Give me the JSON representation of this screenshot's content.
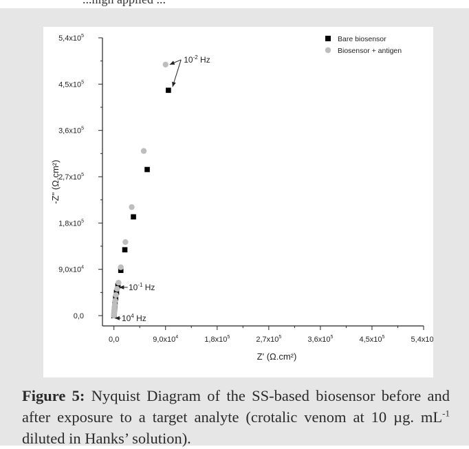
{
  "header_text": "...high applied ...",
  "caption": {
    "label": "Figure 5:",
    "text_before_sup": " Nyquist Diagram of the SS-based biosensor before and after exposure to a target analyte (crotalic venom at 10 µg. mL",
    "sup": "-1",
    "text_after_sup": " diluted in Hanks’ solution)."
  },
  "chart_data": {
    "type": "scatter",
    "title": "",
    "xlabel": "Z' (Ω.cm²)",
    "ylabel": "-Z\" (Ω.cm²)",
    "xlim": [
      -20000,
      540000
    ],
    "ylim": [
      -20000,
      540000
    ],
    "xticks": [
      0,
      90000,
      180000,
      270000,
      360000,
      450000,
      540000
    ],
    "yticks": [
      0,
      90000,
      180000,
      270000,
      360000,
      450000,
      540000
    ],
    "xtick_labels": [
      {
        "mant": "0,0",
        "exp": ""
      },
      {
        "mant": "9,0x10",
        "exp": "4"
      },
      {
        "mant": "1,8x10",
        "exp": "5"
      },
      {
        "mant": "2,7x10",
        "exp": "5"
      },
      {
        "mant": "3,6x10",
        "exp": "5"
      },
      {
        "mant": "4,5x10",
        "exp": "5"
      },
      {
        "mant": "5,4x10",
        "exp": "5"
      }
    ],
    "ytick_labels": [
      {
        "mant": "0,0",
        "exp": ""
      },
      {
        "mant": "9,0x10",
        "exp": "4"
      },
      {
        "mant": "1,8x10",
        "exp": "5"
      },
      {
        "mant": "2,7x10",
        "exp": "5"
      },
      {
        "mant": "3,6x10",
        "exp": "5"
      },
      {
        "mant": "4,5x10",
        "exp": "5"
      },
      {
        "mant": "5,4x10",
        "exp": "5"
      }
    ],
    "grid": false,
    "legend_position": "top-right",
    "series": [
      {
        "name": "Bare biosensor",
        "marker": "square",
        "color": "#000000",
        "points": [
          [
            0,
            0
          ],
          [
            200,
            2000
          ],
          [
            300,
            4000
          ],
          [
            400,
            6500
          ],
          [
            700,
            9000
          ],
          [
            1000,
            13000
          ],
          [
            1500,
            18000
          ],
          [
            2000,
            25000
          ],
          [
            3000,
            34000
          ],
          [
            4500,
            45000
          ],
          [
            7000,
            58000
          ],
          [
            12000,
            88000
          ],
          [
            19000,
            128000
          ],
          [
            34000,
            192000
          ],
          [
            58000,
            284000
          ],
          [
            95000,
            438000
          ]
        ]
      },
      {
        "name": "Biosensor + antigen",
        "marker": "circle",
        "color": "#bdbdbd",
        "points": [
          [
            0,
            0
          ],
          [
            100,
            2000
          ],
          [
            200,
            4500
          ],
          [
            300,
            7000
          ],
          [
            600,
            10000
          ],
          [
            1000,
            15000
          ],
          [
            1500,
            21000
          ],
          [
            2200,
            29000
          ],
          [
            3500,
            40000
          ],
          [
            5500,
            52000
          ],
          [
            8000,
            64000
          ],
          [
            12000,
            94000
          ],
          [
            20000,
            143000
          ],
          [
            31000,
            211000
          ],
          [
            52000,
            320000
          ],
          [
            90000,
            488000
          ]
        ]
      }
    ],
    "annotations": [
      {
        "text": "10",
        "sup": "-2",
        "unit": " Hz",
        "target_series": [
          0,
          1
        ],
        "target_index": 15
      },
      {
        "text": "10",
        "sup": "-1",
        "unit": " Hz",
        "target_series": [
          0
        ],
        "target_index": 11
      },
      {
        "text": "10",
        "sup": "4",
        "unit": " Hz",
        "target_series": [
          0
        ],
        "target_index": 0
      }
    ]
  }
}
